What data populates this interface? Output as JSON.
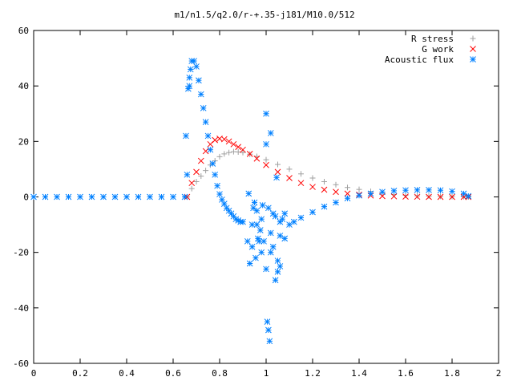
{
  "chart_data": {
    "type": "scatter",
    "title": "m1/n1.5/q2.0/r-+.35-j181/M10.0/512",
    "xlabel": "",
    "ylabel": "",
    "xlim": [
      0,
      2
    ],
    "ylim": [
      -60,
      60
    ],
    "xticks": [
      0,
      0.2,
      0.4,
      0.6,
      0.8,
      1,
      1.2,
      1.4,
      1.6,
      1.8,
      2
    ],
    "xtick_labels": [
      "0",
      "0.2",
      "0.4",
      "0.6",
      "0.8",
      "1",
      "1.2",
      "1.4",
      "1.6",
      "1.8",
      "2"
    ],
    "yticks": [
      -60,
      -40,
      -20,
      0,
      20,
      40,
      60
    ],
    "ytick_labels": [
      "-60",
      "-40",
      "-20",
      "0",
      "20",
      "40",
      "60"
    ],
    "grid": false,
    "legend_position": "top-right",
    "series": [
      {
        "name": "R stress",
        "color": "#a0a0a0",
        "marker": "plus",
        "x": [
          0.66,
          0.68,
          0.7,
          0.72,
          0.74,
          0.76,
          0.78,
          0.8,
          0.82,
          0.84,
          0.86,
          0.88,
          0.9,
          0.93,
          0.96,
          1.0,
          1.05,
          1.1,
          1.15,
          1.2,
          1.25,
          1.3,
          1.35,
          1.4,
          1.45,
          1.5,
          1.55,
          1.6,
          1.65,
          1.7,
          1.75,
          1.8,
          1.85,
          1.87
        ],
        "y": [
          0,
          3,
          5.5,
          7.5,
          9.5,
          11.5,
          13,
          14.5,
          15.5,
          16,
          16.3,
          16.2,
          16,
          15.4,
          14.6,
          13.4,
          11.7,
          10,
          8.3,
          6.8,
          5.5,
          4.4,
          3.4,
          2.7,
          2,
          1.4,
          0.9,
          0.6,
          0.4,
          0.3,
          0.2,
          0.1,
          0.1,
          0
        ]
      },
      {
        "name": "G work",
        "color": "#ff0000",
        "marker": "cross",
        "x": [
          0.66,
          0.68,
          0.7,
          0.72,
          0.74,
          0.76,
          0.78,
          0.8,
          0.82,
          0.84,
          0.86,
          0.88,
          0.9,
          0.93,
          0.96,
          1.0,
          1.05,
          1.1,
          1.15,
          1.2,
          1.25,
          1.3,
          1.35,
          1.4,
          1.45,
          1.5,
          1.55,
          1.6,
          1.65,
          1.7,
          1.75,
          1.8,
          1.85,
          1.87
        ],
        "y": [
          0,
          5,
          9,
          13,
          16.5,
          19,
          20.5,
          21,
          20.8,
          20,
          19,
          18,
          17,
          15.5,
          13.8,
          11.5,
          9,
          6.8,
          5,
          3.6,
          2.6,
          1.8,
          1.2,
          0.8,
          0.5,
          0.3,
          0.2,
          0.1,
          0.05,
          0,
          0,
          0,
          0,
          0
        ]
      },
      {
        "name": "Acoustic flux",
        "color": "#0080ff",
        "marker": "asterisk",
        "x": [
          0.0,
          0.05,
          0.1,
          0.15,
          0.2,
          0.25,
          0.3,
          0.35,
          0.4,
          0.45,
          0.5,
          0.55,
          0.6,
          0.65,
          0.66,
          0.67,
          0.675,
          0.68,
          0.69,
          0.7,
          0.71,
          0.72,
          0.73,
          0.74,
          0.75,
          0.76,
          0.77,
          0.78,
          0.79,
          0.8,
          0.81,
          0.82,
          0.83,
          0.84,
          0.85,
          0.86,
          0.87,
          0.88,
          0.89,
          0.9,
          0.92,
          0.94,
          0.96,
          0.98,
          1.0,
          1.02,
          1.04,
          1.06,
          1.08,
          1.1,
          1.12,
          1.15,
          1.2,
          1.25,
          1.3,
          1.35,
          1.4,
          1.45,
          1.5,
          1.55,
          1.6,
          1.65,
          1.7,
          1.75,
          1.8,
          1.85,
          1.87,
          0.655,
          0.665,
          0.67,
          0.925,
          0.93,
          0.945,
          0.955,
          0.965,
          0.975,
          0.985,
          0.99,
          1.0,
          1.005,
          1.01,
          1.015,
          1.02,
          1.03,
          1.04,
          1.045,
          1.05,
          1.06,
          1.07,
          1.08,
          0.94,
          0.95,
          0.96,
          0.97,
          0.98,
          1.0,
          1.01,
          1.02,
          1.03,
          1.05,
          1.06
        ],
        "y": [
          0,
          0,
          0,
          0,
          0,
          0,
          0,
          0,
          0,
          0,
          0,
          0,
          0,
          0,
          8,
          40,
          46,
          49,
          49,
          47,
          42,
          37,
          32,
          27,
          22,
          17,
          12,
          8,
          4,
          1,
          -1,
          -2.5,
          -4,
          -5,
          -6,
          -7,
          -8,
          -8.5,
          -9,
          -9,
          -16,
          -18,
          -10,
          -20,
          -26,
          -20,
          -30,
          -25,
          -15,
          -10,
          -9,
          -7.5,
          -5.5,
          -3.5,
          -2,
          -0.5,
          0.5,
          1.2,
          1.8,
          2.2,
          2.4,
          2.5,
          2.5,
          2.4,
          2,
          1.2,
          0.3,
          22,
          39,
          43,
          1.2,
          -24,
          -4,
          -22,
          -15,
          -12,
          -3,
          -16,
          19,
          -45,
          -48,
          -52,
          23,
          -18,
          -7,
          7,
          -27,
          -14,
          -8,
          -6,
          -10,
          -2,
          -5,
          -16,
          -8,
          30,
          -4,
          -13,
          -6,
          -23,
          -9
        ]
      }
    ]
  }
}
